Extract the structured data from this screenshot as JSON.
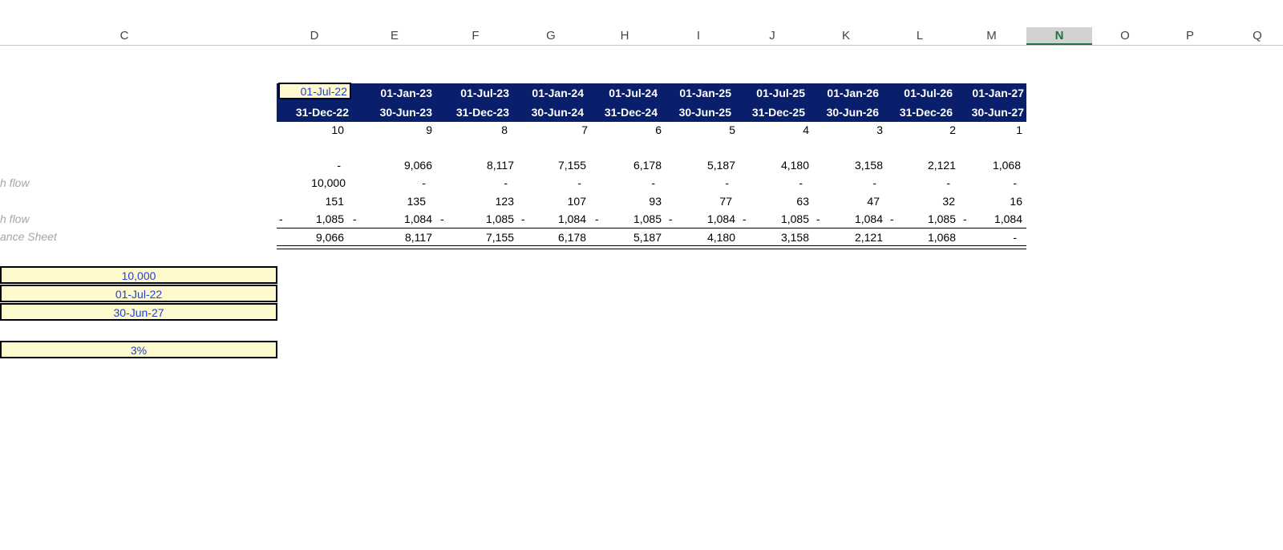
{
  "columns": [
    "C",
    "D",
    "E",
    "F",
    "G",
    "H",
    "I",
    "J",
    "K",
    "L",
    "M",
    "N",
    "O",
    "P",
    "Q"
  ],
  "selected_column": "N",
  "header": {
    "start_dates": [
      "01-Jul-22",
      "01-Jan-23",
      "01-Jul-23",
      "01-Jan-24",
      "01-Jul-24",
      "01-Jan-25",
      "01-Jul-25",
      "01-Jan-26",
      "01-Jul-26",
      "01-Jan-27"
    ],
    "end_dates": [
      "31-Dec-22",
      "30-Jun-23",
      "31-Dec-23",
      "30-Jun-24",
      "31-Dec-24",
      "30-Jun-25",
      "31-Dec-25",
      "30-Jun-26",
      "31-Dec-26",
      "30-Jun-27"
    ]
  },
  "rows": {
    "periods_remaining": [
      "10",
      "9",
      "8",
      "7",
      "6",
      "5",
      "4",
      "3",
      "2",
      "1"
    ],
    "opening": [
      "-",
      "9,066",
      "8,117",
      "7,155",
      "6,178",
      "5,187",
      "4,180",
      "3,158",
      "2,121",
      "1,068"
    ],
    "inflow": [
      "10,000",
      "-",
      "-",
      "-",
      "-",
      "-",
      "-",
      "-",
      "-",
      "-"
    ],
    "interest": [
      "151",
      "135",
      "123",
      "107",
      "93",
      "77",
      "63",
      "47",
      "32",
      "16"
    ],
    "outflow": [
      "1,085",
      "1,084",
      "1,085",
      "1,084",
      "1,085",
      "1,084",
      "1,085",
      "1,084",
      "1,085",
      "1,084"
    ],
    "outflow_sign": "-",
    "closing": [
      "9,066",
      "8,117",
      "7,155",
      "6,178",
      "5,187",
      "4,180",
      "3,158",
      "2,121",
      "1,068",
      "-"
    ]
  },
  "labels": {
    "inflow": "h flow",
    "outflow": "h flow",
    "closing": "ance Sheet"
  },
  "inputs": {
    "amount": "10,000",
    "start_date": "01-Jul-22",
    "end_date": "30-Jun-27",
    "rate": "3%"
  },
  "colors": {
    "header_band": "#0a1f6b",
    "input_fill": "#fffacd",
    "input_text": "#1f3fd6",
    "selected_header": "#217346"
  }
}
